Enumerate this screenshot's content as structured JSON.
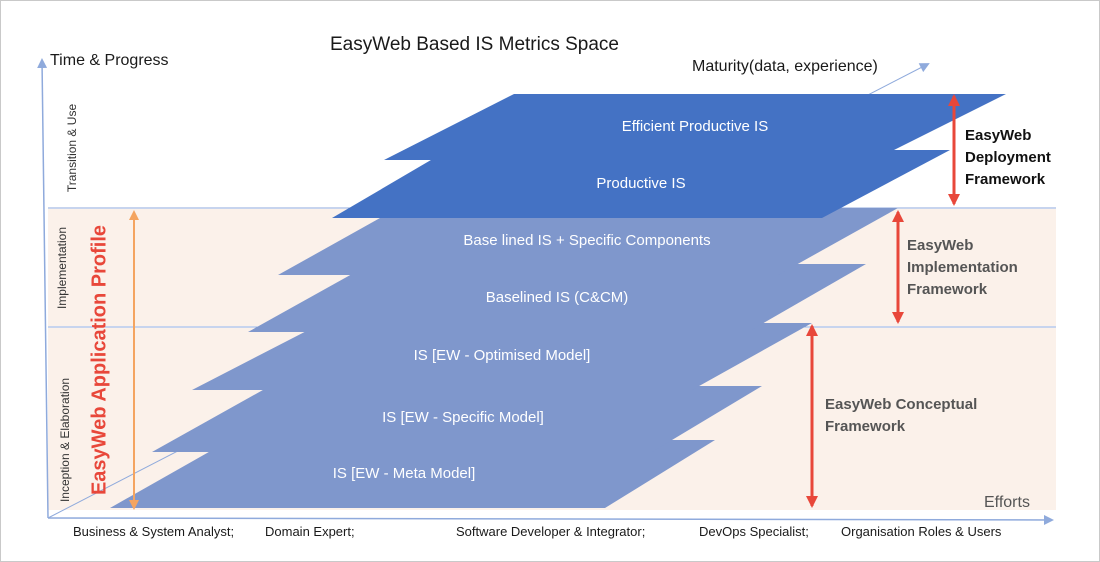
{
  "title": "EasyWeb Based IS Metrics Space",
  "axes": {
    "y_label": "Time & Progress",
    "x_label": "Maturity(data, experience)",
    "x2_label": "Efforts"
  },
  "phases": {
    "transition": "Transition & Use",
    "implementation": "Implementation",
    "inception": "Inception & Elaboration"
  },
  "profile_label": "EasyWeb Application Profile",
  "layers": [
    {
      "label": "Efficient Productive IS"
    },
    {
      "label": "Productive IS"
    },
    {
      "label": "Base lined IS + Specific Components"
    },
    {
      "label": "Baselined IS (C&CM)"
    },
    {
      "label": "IS [EW - Optimised Model]"
    },
    {
      "label": "IS [EW - Specific Model]"
    },
    {
      "label": "IS [EW - Meta Model]"
    }
  ],
  "frameworks": {
    "deployment": [
      "EasyWeb",
      "Deployment",
      "Framework"
    ],
    "implementation": [
      "EasyWeb",
      "Implementation",
      "Framework"
    ],
    "conceptual": [
      "EasyWeb Conceptual",
      "Framework"
    ]
  },
  "roles": [
    "Business & System Analyst;",
    "Domain Expert;",
    "Software Developer & Integrator;",
    "DevOps Specialist;",
    "Organisation Roles & Users"
  ],
  "colors": {
    "layer_dark": "#4472C4",
    "layer_light": "#7F97CC",
    "band": "#FBF1EA",
    "axis": "#8FAADC",
    "arrow_red": "#E8473A",
    "arrow_orange": "#F4A460"
  }
}
